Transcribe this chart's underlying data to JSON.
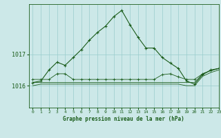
{
  "title": "Graphe pression niveau de la mer (hPa)",
  "background_color": "#cce8e8",
  "grid_color": "#99cccc",
  "line_color": "#1a5c1a",
  "xlim": [
    -0.5,
    23
  ],
  "ylim": [
    1015.3,
    1018.6
  ],
  "yticks": [
    1016,
    1017
  ],
  "xticks": [
    0,
    1,
    2,
    3,
    4,
    5,
    6,
    7,
    8,
    9,
    10,
    11,
    12,
    13,
    14,
    15,
    16,
    17,
    18,
    19,
    20,
    21,
    22,
    23
  ],
  "series_main": [
    1016.1,
    1016.15,
    1016.5,
    1016.75,
    1016.65,
    1016.9,
    1017.15,
    1017.45,
    1017.7,
    1017.9,
    1018.2,
    1018.4,
    1017.95,
    1017.55,
    1017.2,
    1017.2,
    1016.9,
    1016.72,
    1016.55,
    1016.15,
    1016.05,
    1016.35,
    1016.5,
    1016.55
  ],
  "series_flat1": [
    1016.2,
    1016.2,
    1016.2,
    1016.38,
    1016.38,
    1016.2,
    1016.2,
    1016.2,
    1016.2,
    1016.2,
    1016.2,
    1016.2,
    1016.2,
    1016.2,
    1016.2,
    1016.2,
    1016.35,
    1016.38,
    1016.28,
    1016.2,
    1016.2,
    1016.38,
    1016.48,
    1016.55
  ],
  "series_flat2": [
    1016.1,
    1016.1,
    1016.1,
    1016.1,
    1016.1,
    1016.1,
    1016.1,
    1016.1,
    1016.1,
    1016.1,
    1016.1,
    1016.1,
    1016.1,
    1016.1,
    1016.1,
    1016.1,
    1016.1,
    1016.1,
    1016.1,
    1016.1,
    1016.1,
    1016.38,
    1016.48,
    1016.55
  ],
  "series_flat3": [
    1016.0,
    1016.05,
    1016.05,
    1016.05,
    1016.05,
    1016.05,
    1016.05,
    1016.05,
    1016.05,
    1016.05,
    1016.05,
    1016.05,
    1016.05,
    1016.05,
    1016.05,
    1016.05,
    1016.05,
    1016.05,
    1016.05,
    1016.0,
    1016.0,
    1016.3,
    1016.42,
    1016.5
  ]
}
